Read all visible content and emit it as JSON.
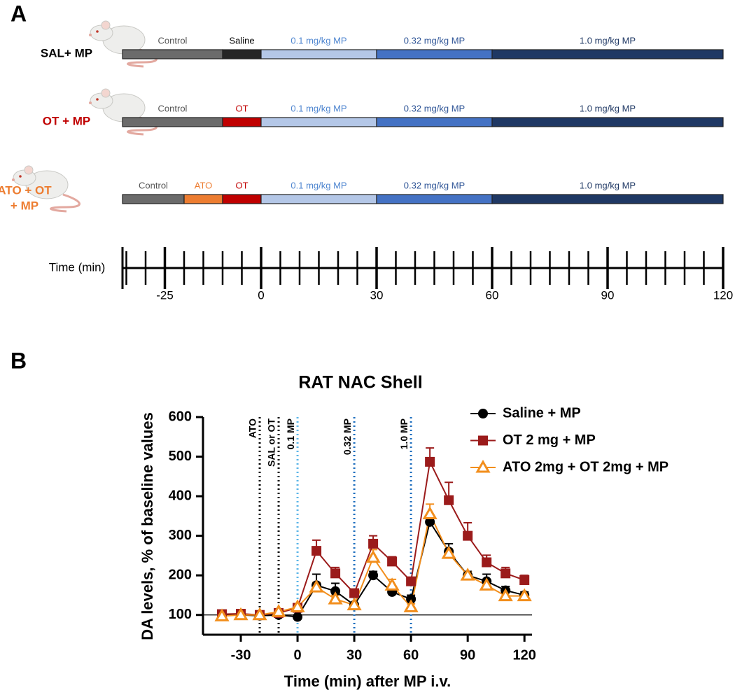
{
  "panel_a": {
    "label": "A",
    "rows": [
      {
        "label": [
          "SAL+ MP"
        ],
        "color": "#000000",
        "segments": [
          {
            "label": "Control",
            "start": -36,
            "end": -10,
            "color": "#6b6b6b",
            "text_color": "#555555"
          },
          {
            "label": "Saline",
            "start": -10,
            "end": 0,
            "color": "#262626",
            "text_color": "#000000"
          },
          {
            "label": "0.1 mg/kg MP",
            "start": 0,
            "end": 30,
            "color": "#b4c7e7",
            "text_color": "#4f86d0"
          },
          {
            "label": "0.32 mg/kg MP",
            "start": 30,
            "end": 60,
            "color": "#4472c4",
            "text_color": "#2f5597"
          },
          {
            "label": "1.0 mg/kg MP",
            "start": 60,
            "end": 120,
            "color": "#1f3864",
            "text_color": "#1f3864"
          }
        ]
      },
      {
        "label": [
          "OT + MP"
        ],
        "color": "#c00000",
        "segments": [
          {
            "label": "Control",
            "start": -36,
            "end": -10,
            "color": "#6b6b6b",
            "text_color": "#555555"
          },
          {
            "label": "OT",
            "start": -10,
            "end": 0,
            "color": "#c00000",
            "text_color": "#c00000"
          },
          {
            "label": "0.1 mg/kg MP",
            "start": 0,
            "end": 30,
            "color": "#b4c7e7",
            "text_color": "#4f86d0"
          },
          {
            "label": "0.32 mg/kg MP",
            "start": 30,
            "end": 60,
            "color": "#4472c4",
            "text_color": "#2f5597"
          },
          {
            "label": "1.0 mg/kg MP",
            "start": 60,
            "end": 120,
            "color": "#1f3864",
            "text_color": "#1f3864"
          }
        ]
      },
      {
        "label": [
          "ATO + OT",
          "+ MP"
        ],
        "color": "#ed7d31",
        "segments": [
          {
            "label": "Control",
            "start": -36,
            "end": -20,
            "color": "#6b6b6b",
            "text_color": "#555555"
          },
          {
            "label": "ATO",
            "start": -20,
            "end": -10,
            "color": "#ed7d31",
            "text_color": "#ed7d31"
          },
          {
            "label": "OT",
            "start": -10,
            "end": 0,
            "color": "#c00000",
            "text_color": "#c00000"
          },
          {
            "label": "0.1 mg/kg MP",
            "start": 0,
            "end": 30,
            "color": "#b4c7e7",
            "text_color": "#4f86d0"
          },
          {
            "label": "0.32 mg/kg MP",
            "start": 30,
            "end": 60,
            "color": "#4472c4",
            "text_color": "#2f5597"
          },
          {
            "label": "1.0 mg/kg MP",
            "start": 60,
            "end": 120,
            "color": "#1f3864",
            "text_color": "#1f3864"
          }
        ]
      }
    ],
    "time_label": "Time (min)",
    "time_range": [
      -36,
      120
    ],
    "time_ticks": [
      -25,
      0,
      30,
      60,
      90,
      120
    ],
    "minor_ticks": [
      -35,
      -30,
      -20,
      -15,
      -10,
      -5,
      5,
      10,
      15,
      20,
      25,
      35,
      40,
      45,
      50,
      55,
      65,
      70,
      75,
      80,
      85,
      95,
      100,
      105,
      110,
      115
    ]
  },
  "chart_data": {
    "type": "line",
    "panel_label": "B",
    "title": "RAT NAC Shell",
    "x_label": "Time (min) after MP i.v.",
    "y_label": "DA levels, % of baseline values",
    "x": [
      -40,
      -30,
      -20,
      -10,
      0,
      10,
      20,
      30,
      40,
      50,
      60,
      70,
      80,
      90,
      100,
      110,
      120
    ],
    "xlim": [
      -50,
      124
    ],
    "xticks": [
      -30,
      0,
      30,
      60,
      90,
      120
    ],
    "ylim": [
      50,
      600
    ],
    "yticks": [
      100,
      200,
      300,
      400,
      500,
      600
    ],
    "reference_line": 100,
    "annotations": [
      {
        "x": -20,
        "label": "ATO",
        "color": "#000000"
      },
      {
        "x": -10,
        "label": "SAL or OT",
        "color": "#000000"
      },
      {
        "x": 0,
        "label": "0.1 MP",
        "color": "#5bb5e8"
      },
      {
        "x": 30,
        "label": "0.32 MP",
        "color": "#1f6fbf"
      },
      {
        "x": 60,
        "label": "1.0 MP",
        "color": "#1f6fbf"
      }
    ],
    "legend": "top-right",
    "series": [
      {
        "name": "Saline + MP",
        "color": "#000000",
        "marker": "circle",
        "values": [
          100,
          100,
          98,
          100,
          95,
          175,
          160,
          125,
          200,
          158,
          140,
          335,
          260,
          200,
          185,
          162,
          150
        ],
        "errors": [
          3,
          3,
          3,
          3,
          3,
          28,
          20,
          5,
          10,
          10,
          10,
          15,
          20,
          10,
          18,
          10,
          8
        ]
      },
      {
        "name": "OT 2 mg + MP",
        "color": "#9b1b1b",
        "marker": "square",
        "values": [
          102,
          103,
          100,
          105,
          118,
          262,
          205,
          155,
          280,
          235,
          185,
          487,
          390,
          300,
          233,
          205,
          188
        ],
        "errors": [
          3,
          3,
          3,
          3,
          5,
          27,
          15,
          8,
          20,
          12,
          10,
          35,
          45,
          33,
          18,
          15,
          12
        ]
      },
      {
        "name": "ATO 2mg + OT 2mg + MP",
        "color": "#f28e1c",
        "marker": "triangle",
        "values": [
          97,
          100,
          100,
          108,
          120,
          170,
          140,
          125,
          245,
          175,
          120,
          355,
          255,
          200,
          175,
          148,
          148
        ],
        "errors": [
          3,
          3,
          3,
          3,
          5,
          12,
          10,
          5,
          20,
          15,
          8,
          25,
          12,
          8,
          10,
          8,
          8
        ]
      }
    ]
  }
}
